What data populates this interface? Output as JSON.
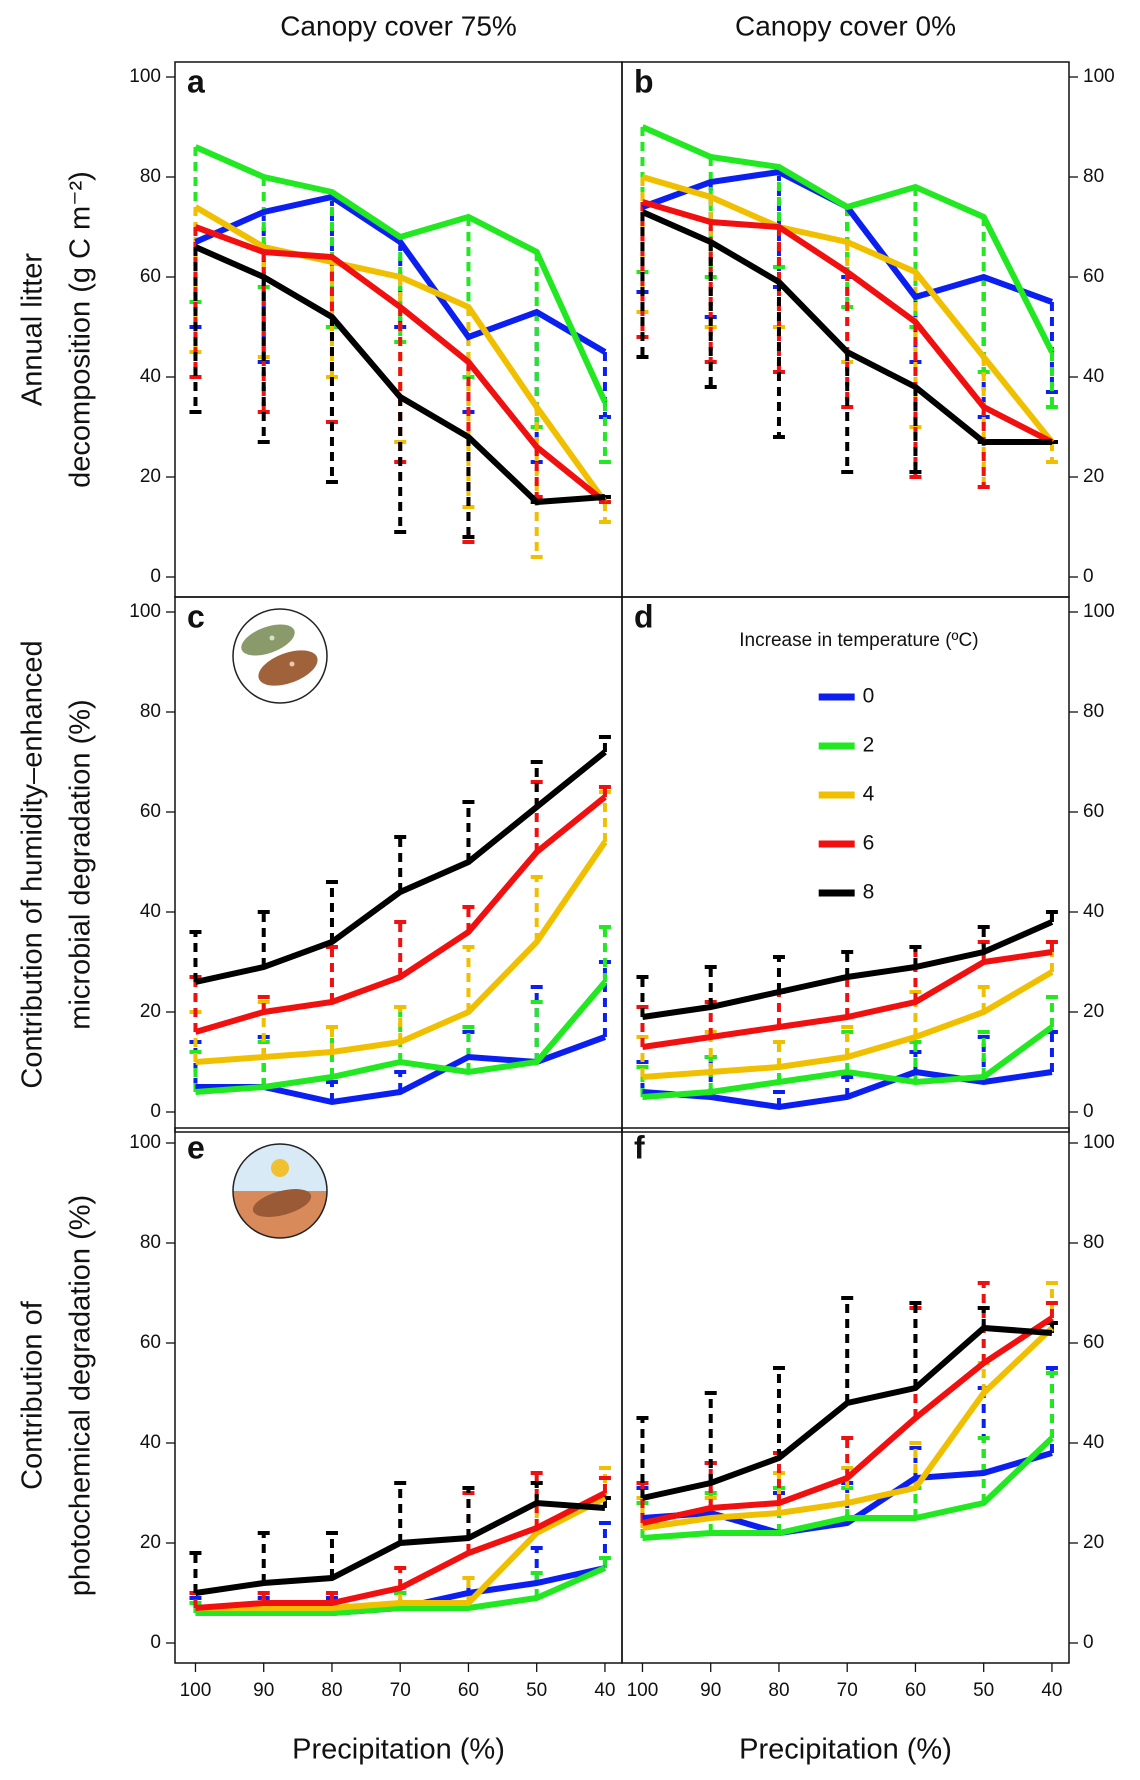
{
  "chart_data": [
    {
      "type": "line",
      "label": "a",
      "title": "Canopy cover 75%",
      "ylabel": [
        "Annual litter",
        "decomposition (g C m⁻²)"
      ],
      "x": [
        100,
        90,
        80,
        70,
        60,
        50,
        40
      ],
      "xlim": [
        103,
        37.5
      ],
      "ylim": [
        -4,
        103
      ],
      "yticks": [
        0,
        20,
        40,
        60,
        80,
        100
      ],
      "yaxis_side": "left",
      "error_direction": "down",
      "series": [
        {
          "color": "#0a1ff0",
          "values": [
            67,
            73,
            76,
            67,
            48,
            53,
            45
          ],
          "errors": [
            17,
            30,
            26,
            17,
            15,
            30,
            13
          ]
        },
        {
          "color": "#22e822",
          "values": [
            86,
            80,
            77,
            68,
            72,
            65,
            35
          ],
          "errors": [
            31,
            22,
            27,
            21,
            32,
            35,
            12
          ]
        },
        {
          "color": "#f0c000",
          "values": [
            74,
            66,
            63,
            60,
            54,
            34,
            15
          ],
          "errors": [
            29,
            22,
            23,
            33,
            40,
            30,
            4
          ]
        },
        {
          "color": "#f01010",
          "values": [
            70,
            65,
            64,
            54,
            43,
            26,
            15
          ],
          "errors": [
            30,
            32,
            33,
            31,
            36,
            10,
            0
          ]
        },
        {
          "color": "#000000",
          "values": [
            66,
            60,
            52,
            36,
            28,
            15,
            16
          ],
          "errors": [
            33,
            33,
            33,
            27,
            20,
            0,
            0
          ]
        }
      ]
    },
    {
      "type": "line",
      "label": "b",
      "title": "Canopy cover 0%",
      "x": [
        100,
        90,
        80,
        70,
        60,
        50,
        40
      ],
      "xlim": [
        103,
        37.5
      ],
      "ylim": [
        -4,
        103
      ],
      "yticks": [
        0,
        20,
        40,
        60,
        80,
        100
      ],
      "yaxis_side": "right",
      "error_direction": "down",
      "series": [
        {
          "color": "#0a1ff0",
          "values": [
            74,
            79,
            81,
            74,
            56,
            60,
            55
          ],
          "errors": [
            17,
            27,
            23,
            14,
            13,
            28,
            18
          ]
        },
        {
          "color": "#22e822",
          "values": [
            90,
            84,
            82,
            74,
            78,
            72,
            45
          ],
          "errors": [
            29,
            24,
            20,
            20,
            28,
            31,
            11
          ]
        },
        {
          "color": "#f0c000",
          "values": [
            80,
            76,
            70,
            67,
            61,
            44,
            27
          ],
          "errors": [
            27,
            26,
            20,
            24,
            31,
            26,
            4
          ]
        },
        {
          "color": "#f01010",
          "values": [
            75,
            71,
            70,
            61,
            51,
            34,
            27
          ],
          "errors": [
            27,
            28,
            29,
            27,
            31,
            16,
            0
          ]
        },
        {
          "color": "#000000",
          "values": [
            73,
            67,
            59,
            45,
            38,
            27,
            27
          ],
          "errors": [
            29,
            29,
            31,
            24,
            17,
            0,
            0
          ]
        }
      ]
    },
    {
      "type": "line",
      "label": "c",
      "ylabel": [
        "Contribution of humidity–enhanced",
        "microbial degradation (%)"
      ],
      "x": [
        100,
        90,
        80,
        70,
        60,
        50,
        40
      ],
      "xlim": [
        103,
        37.5
      ],
      "ylim": [
        -4,
        103
      ],
      "yticks": [
        0,
        20,
        40,
        60,
        80,
        100
      ],
      "yaxis_side": "left",
      "error_direction": "up",
      "series": [
        {
          "color": "#0a1ff0",
          "values": [
            5,
            5,
            2,
            4,
            11,
            10,
            15
          ],
          "errors": [
            9,
            10,
            4,
            4,
            5,
            15,
            15
          ]
        },
        {
          "color": "#22e822",
          "values": [
            4,
            5,
            7,
            10,
            8,
            10,
            26
          ],
          "errors": [
            8,
            9,
            10,
            11,
            9,
            12,
            11
          ]
        },
        {
          "color": "#f0c000",
          "values": [
            10,
            11,
            12,
            14,
            20,
            34,
            54
          ],
          "errors": [
            10,
            11,
            5,
            7,
            13,
            13,
            10
          ]
        },
        {
          "color": "#f01010",
          "values": [
            16,
            20,
            22,
            27,
            36,
            52,
            63
          ],
          "errors": [
            11,
            3,
            11,
            11,
            5,
            14,
            2
          ]
        },
        {
          "color": "#000000",
          "values": [
            26,
            29,
            34,
            44,
            50,
            61,
            72
          ],
          "errors": [
            10,
            11,
            12,
            11,
            12,
            9,
            3
          ]
        }
      ]
    },
    {
      "type": "line",
      "label": "d",
      "legend": "upper right",
      "legend_title": "Increase in temperature (ºC)",
      "x": [
        100,
        90,
        80,
        70,
        60,
        50,
        40
      ],
      "xlim": [
        103,
        37.5
      ],
      "ylim": [
        -4,
        103
      ],
      "yticks": [
        0,
        20,
        40,
        60,
        80,
        100
      ],
      "yaxis_side": "right",
      "error_direction": "up",
      "series": [
        {
          "name": "0",
          "color": "#0a1ff0",
          "values": [
            4,
            3,
            1,
            3,
            8,
            6,
            8
          ],
          "errors": [
            6,
            8,
            3,
            4,
            4,
            9,
            8
          ]
        },
        {
          "name": "2",
          "color": "#22e822",
          "values": [
            3,
            4,
            6,
            8,
            6,
            7,
            17
          ],
          "errors": [
            6,
            7,
            8,
            8,
            8,
            9,
            6
          ]
        },
        {
          "name": "4",
          "color": "#f0c000",
          "values": [
            7,
            8,
            9,
            11,
            15,
            20,
            28
          ],
          "errors": [
            8,
            8,
            5,
            6,
            9,
            5,
            6
          ]
        },
        {
          "name": "6",
          "color": "#f01010",
          "values": [
            13,
            15,
            17,
            19,
            22,
            30,
            32
          ],
          "errors": [
            8,
            7,
            7,
            8,
            11,
            4,
            2
          ]
        },
        {
          "name": "8",
          "color": "#000000",
          "values": [
            19,
            21,
            24,
            27,
            29,
            32,
            38
          ],
          "errors": [
            8,
            8,
            7,
            5,
            4,
            5,
            2
          ]
        }
      ]
    },
    {
      "type": "line",
      "label": "e",
      "ylabel": [
        "Contribution of",
        "photochemical degradation (%)"
      ],
      "xlabel": "Precipitation (%)",
      "x": [
        100,
        90,
        80,
        70,
        60,
        50,
        40
      ],
      "xlim": [
        103,
        37.5
      ],
      "xticks": [
        100,
        90,
        80,
        70,
        60,
        50,
        40
      ],
      "ylim": [
        -4,
        103
      ],
      "yticks": [
        0,
        20,
        40,
        60,
        80,
        100
      ],
      "yaxis_side": "left",
      "error_direction": "up",
      "series": [
        {
          "color": "#0a1ff0",
          "values": [
            6,
            6,
            6,
            7,
            10,
            12,
            15
          ],
          "errors": [
            3,
            3,
            3,
            3,
            3,
            7,
            9
          ]
        },
        {
          "color": "#22e822",
          "values": [
            6,
            6,
            6,
            7,
            7,
            9,
            15
          ],
          "errors": [
            2,
            2,
            2,
            3,
            3,
            5,
            2
          ]
        },
        {
          "color": "#f0c000",
          "values": [
            7,
            7,
            7,
            8,
            8,
            22,
            29
          ],
          "errors": [
            3,
            3,
            3,
            3,
            5,
            10,
            6
          ]
        },
        {
          "color": "#f01010",
          "values": [
            7,
            8,
            8,
            11,
            18,
            23,
            30
          ],
          "errors": [
            3,
            2,
            2,
            4,
            12,
            11,
            3
          ]
        },
        {
          "color": "#000000",
          "values": [
            10,
            12,
            13,
            20,
            21,
            28,
            27
          ],
          "errors": [
            8,
            10,
            9,
            12,
            10,
            4,
            2
          ]
        }
      ]
    },
    {
      "type": "line",
      "label": "f",
      "xlabel": "Precipitation (%)",
      "x": [
        100,
        90,
        80,
        70,
        60,
        50,
        40
      ],
      "xlim": [
        103,
        37.5
      ],
      "xticks": [
        100,
        90,
        80,
        70,
        60,
        50,
        40
      ],
      "ylim": [
        -4,
        103
      ],
      "yticks": [
        0,
        20,
        40,
        60,
        80,
        100
      ],
      "yaxis_side": "right",
      "error_direction": "up",
      "series": [
        {
          "color": "#0a1ff0",
          "values": [
            25,
            26,
            22,
            24,
            33,
            34,
            38
          ],
          "errors": [
            6,
            10,
            8,
            8,
            6,
            17,
            17
          ]
        },
        {
          "color": "#22e822",
          "values": [
            21,
            22,
            22,
            25,
            25,
            28,
            41
          ],
          "errors": [
            7,
            8,
            9,
            6,
            6,
            13,
            13
          ]
        },
        {
          "color": "#f0c000",
          "values": [
            23,
            25,
            26,
            28,
            31,
            50,
            63
          ],
          "errors": [
            6,
            4,
            8,
            7,
            9,
            6,
            9
          ]
        },
        {
          "color": "#f01010",
          "values": [
            24,
            27,
            28,
            33,
            45,
            56,
            65
          ],
          "errors": [
            8,
            9,
            10,
            8,
            22,
            16,
            3
          ]
        },
        {
          "color": "#000000",
          "values": [
            29,
            32,
            37,
            48,
            51,
            63,
            62
          ],
          "errors": [
            16,
            18,
            18,
            21,
            17,
            4,
            2
          ]
        }
      ]
    }
  ]
}
